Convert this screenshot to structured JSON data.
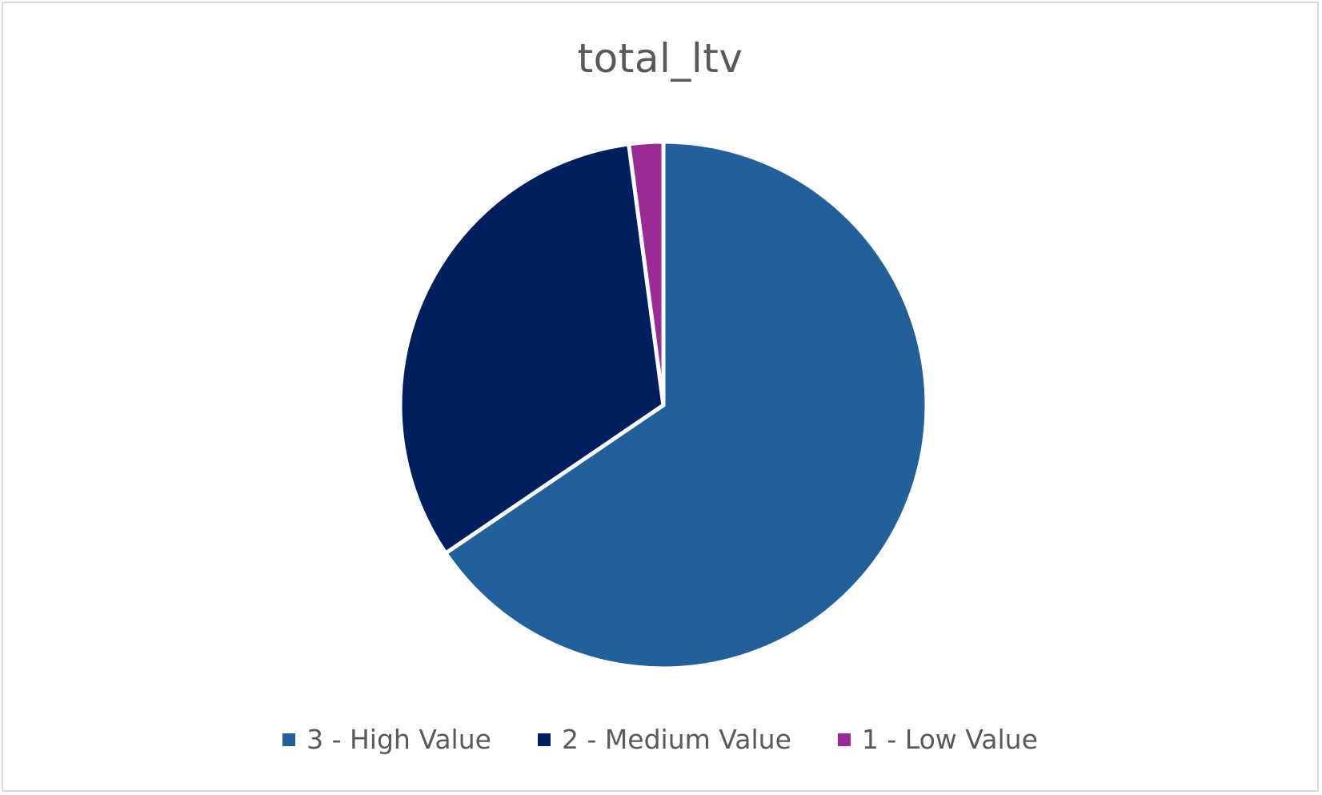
{
  "chart_data": {
    "type": "pie",
    "title": "total_ltv",
    "legend_position": "bottom",
    "start_angle_deg": 0,
    "direction": "clockwise",
    "slices": [
      {
        "label": "3 - High Value",
        "value": 65.5,
        "color": "#22609b"
      },
      {
        "label": "2 - Medium Value",
        "value": 32.4,
        "color": "#001f5e"
      },
      {
        "label": "1 - Low Value",
        "value": 2.1,
        "color": "#9b2a94"
      }
    ]
  }
}
